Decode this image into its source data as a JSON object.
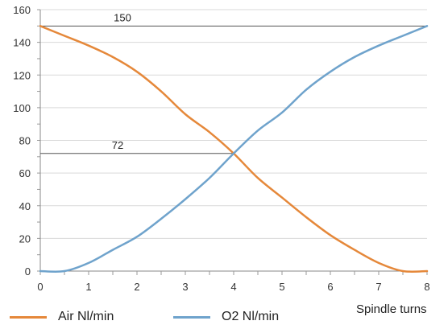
{
  "chart_data": {
    "type": "line",
    "xlabel": "Spindle turns",
    "ylabel": "",
    "xlim": [
      0,
      8
    ],
    "ylim": [
      0,
      160
    ],
    "x_ticks": [
      0,
      1,
      2,
      3,
      4,
      5,
      6,
      7,
      8
    ],
    "y_ticks": [
      0,
      20,
      40,
      60,
      80,
      100,
      120,
      140,
      160
    ],
    "grid": "horizontal",
    "legend_position": "bottom",
    "series": [
      {
        "name": "Air Nl/min",
        "color": "#e5883a",
        "x": [
          0,
          0.5,
          1,
          1.5,
          2,
          2.5,
          3,
          3.5,
          4,
          4.5,
          5,
          5.5,
          6,
          6.5,
          7,
          7.5,
          8
        ],
        "y": [
          150,
          144,
          138,
          131,
          122,
          110,
          96,
          85,
          72,
          57,
          45,
          33,
          22,
          13,
          5,
          0,
          0
        ]
      },
      {
        "name": "O2 Nl/min",
        "color": "#6fa3cc",
        "x": [
          0,
          0.5,
          1,
          1.5,
          2,
          2.5,
          3,
          3.5,
          4,
          4.5,
          5,
          5.5,
          6,
          6.5,
          7,
          7.5,
          8
        ],
        "y": [
          0,
          0,
          5,
          13,
          21,
          32,
          44,
          57,
          72,
          86,
          97,
          111,
          122,
          131,
          138,
          144,
          150
        ]
      }
    ],
    "annotations": [
      {
        "text": "150",
        "y": 150,
        "x_start": 0,
        "x_end": 8,
        "label_x": 1.7
      },
      {
        "text": "72",
        "y": 72,
        "x_start": 0,
        "x_end": 4,
        "label_x": 1.6
      }
    ]
  }
}
